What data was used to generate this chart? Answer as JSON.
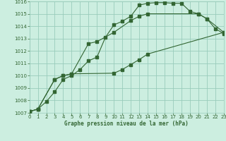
{
  "title": "Graphe pression niveau de la mer (hPa)",
  "background_color": "#cceee0",
  "grid_color": "#99ccbb",
  "line_color": "#336633",
  "xlim": [
    0,
    23
  ],
  "ylim": [
    1007,
    1016
  ],
  "xticks": [
    0,
    1,
    2,
    3,
    4,
    5,
    6,
    7,
    8,
    9,
    10,
    11,
    12,
    13,
    14,
    15,
    16,
    17,
    18,
    19,
    20,
    21,
    22,
    23
  ],
  "yticks": [
    1007,
    1008,
    1009,
    1010,
    1011,
    1012,
    1013,
    1014,
    1015,
    1016
  ],
  "curve1_x": [
    0,
    1,
    2,
    3,
    4,
    5,
    6,
    7,
    8,
    9,
    10,
    11,
    12,
    13,
    14,
    15,
    16,
    17,
    18,
    19,
    20,
    21,
    22,
    23
  ],
  "curve1_y": [
    1007.1,
    1007.3,
    1007.9,
    1008.7,
    1009.7,
    1010.0,
    1010.5,
    1011.2,
    1011.5,
    1013.1,
    1014.1,
    1014.4,
    1014.8,
    1015.7,
    1015.85,
    1015.9,
    1015.9,
    1015.85,
    1015.85,
    1015.2,
    1015.0,
    1014.6,
    1013.8,
    1013.4
  ],
  "curve2_x": [
    0,
    1,
    3,
    4,
    5,
    7,
    8,
    10,
    12,
    13,
    14,
    20,
    21,
    23
  ],
  "curve2_y": [
    1007.1,
    1007.3,
    1009.7,
    1010.0,
    1010.15,
    1012.6,
    1012.75,
    1013.5,
    1014.45,
    1014.8,
    1015.0,
    1015.0,
    1014.6,
    1013.5
  ],
  "curve3_x": [
    0,
    1,
    3,
    4,
    5,
    10,
    11,
    12,
    13,
    14,
    23
  ],
  "curve3_y": [
    1007.1,
    1007.3,
    1009.7,
    1010.0,
    1010.15,
    1010.2,
    1010.5,
    1010.9,
    1011.3,
    1011.75,
    1013.5
  ]
}
